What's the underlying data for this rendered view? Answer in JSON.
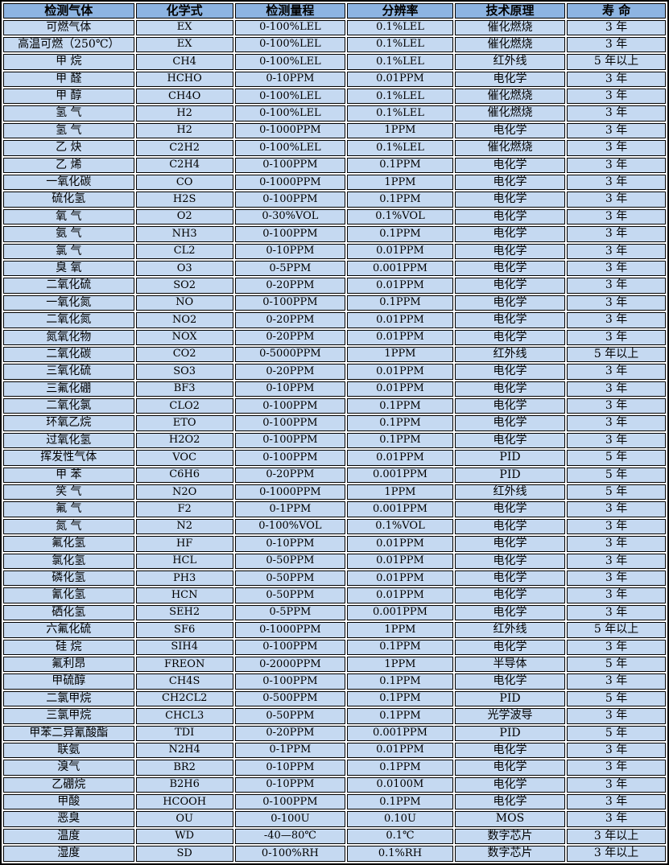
{
  "table": {
    "title": "gas-sensor-specifications",
    "colors": {
      "header_bg": "#8db4e2",
      "row_bg": "#c5d9f1",
      "border_color": "#000000",
      "grid_gap": "#ffffff",
      "text_color": "#000000"
    },
    "columns": [
      "检测气体",
      "化学式",
      "检测量程",
      "分辨率",
      "技术原理",
      "寿 命"
    ],
    "column_names": [
      "gas-name-cell",
      "formula-cell",
      "range-cell",
      "resolution-cell",
      "principle-cell",
      "lifespan-cell"
    ],
    "rows": [
      [
        "可燃气体",
        "EX",
        "0-100%LEL",
        "0.1%LEL",
        "催化燃烧",
        "3 年"
      ],
      [
        "高温可燃（250℃）",
        "EX",
        "0-100%LEL",
        "0.1%LEL",
        "催化燃烧",
        "3 年"
      ],
      [
        "甲 烷",
        "CH4",
        "0-100%LEL",
        "0.1%LEL",
        "红外线",
        "5 年以上"
      ],
      [
        "甲 醛",
        "HCHO",
        "0-10PPM",
        "0.01PPM",
        "电化学",
        "3 年"
      ],
      [
        "甲 醇",
        "CH4O",
        "0-100%LEL",
        "0.1%LEL",
        "催化燃烧",
        "3 年"
      ],
      [
        "氢 气",
        "H2",
        "0-100%LEL",
        "0.1%LEL",
        "催化燃烧",
        "3 年"
      ],
      [
        "氢 气",
        "H2",
        "0-1000PPM",
        "1PPM",
        "电化学",
        "3 年"
      ],
      [
        "乙 炔",
        "C2H2",
        "0-100%LEL",
        "0.1%LEL",
        "催化燃烧",
        "3 年"
      ],
      [
        "乙 烯",
        "C2H4",
        "0-100PPM",
        "0.1PPM",
        "电化学",
        "3 年"
      ],
      [
        "一氧化碳",
        "CO",
        "0-1000PPM",
        "1PPM",
        "电化学",
        "3 年"
      ],
      [
        "硫化氢",
        "H2S",
        "0-100PPM",
        "0.1PPM",
        "电化学",
        "3 年"
      ],
      [
        "氧 气",
        "O2",
        "0-30%VOL",
        "0.1%VOL",
        "电化学",
        "3 年"
      ],
      [
        "氨 气",
        "NH3",
        "0-100PPM",
        "0.1PPM",
        "电化学",
        "3 年"
      ],
      [
        "氯 气",
        "CL2",
        "0-10PPM",
        "0.01PPM",
        "电化学",
        "3 年"
      ],
      [
        "臭 氧",
        "O3",
        "0-5PPM",
        "0.001PPM",
        "电化学",
        "3 年"
      ],
      [
        "二氧化硫",
        "SO2",
        "0-20PPM",
        "0.01PPM",
        "电化学",
        "3 年"
      ],
      [
        "一氧化氮",
        "NO",
        "0-100PPM",
        "0.1PPM",
        "电化学",
        "3 年"
      ],
      [
        "二氧化氮",
        "NO2",
        "0-20PPM",
        "0.01PPM",
        "电化学",
        "3 年"
      ],
      [
        "氮氧化物",
        "NOX",
        "0-20PPM",
        "0.01PPM",
        "电化学",
        "3 年"
      ],
      [
        "二氧化碳",
        "CO2",
        "0-5000PPM",
        "1PPM",
        "红外线",
        "5 年以上"
      ],
      [
        "三氧化硫",
        "SO3",
        "0-20PPM",
        "0.01PPM",
        "电化学",
        "3 年"
      ],
      [
        "三氟化硼",
        "BF3",
        "0-10PPM",
        "0.01PPM",
        "电化学",
        "3 年"
      ],
      [
        "二氧化氯",
        "CLO2",
        "0-100PPM",
        "0.1PPM",
        "电化学",
        "3 年"
      ],
      [
        "环氧乙烷",
        "ETO",
        "0-100PPM",
        "0.1PPM",
        "电化学",
        "3 年"
      ],
      [
        "过氧化氢",
        "H2O2",
        "0-100PPM",
        "0.1PPM",
        "电化学",
        "3 年"
      ],
      [
        "挥发性气体",
        "VOC",
        "0-100PPM",
        "0.01PPM",
        "PID",
        "5 年"
      ],
      [
        "甲 苯",
        "C6H6",
        "0-20PPM",
        "0.001PPM",
        "PID",
        "5 年"
      ],
      [
        "笑 气",
        "N2O",
        "0-1000PPM",
        "1PPM",
        "红外线",
        "5 年"
      ],
      [
        "氟 气",
        "F2",
        "0-1PPM",
        "0.001PPM",
        "电化学",
        "3 年"
      ],
      [
        "氮 气",
        "N2",
        "0-100%VOL",
        "0.1%VOL",
        "电化学",
        "3 年"
      ],
      [
        "氟化氢",
        "HF",
        "0-10PPM",
        "0.01PPM",
        "电化学",
        "3 年"
      ],
      [
        "氯化氢",
        "HCL",
        "0-50PPM",
        "0.01PPM",
        "电化学",
        "3 年"
      ],
      [
        "磷化氢",
        "PH3",
        "0-50PPM",
        "0.01PPM",
        "电化学",
        "3 年"
      ],
      [
        "氰化氢",
        "HCN",
        "0-50PPM",
        "0.01PPM",
        "电化学",
        "3 年"
      ],
      [
        "硒化氢",
        "SEH2",
        "0-5PPM",
        "0.001PPM",
        "电化学",
        "3 年"
      ],
      [
        "六氟化硫",
        "SF6",
        "0-1000PPM",
        "1PPM",
        "红外线",
        "5 年以上"
      ],
      [
        "硅 烷",
        "SIH4",
        "0-100PPM",
        "0.1PPM",
        "电化学",
        "3 年"
      ],
      [
        "氟利昂",
        "FREON",
        "0-2000PPM",
        "1PPM",
        "半导体",
        "5 年"
      ],
      [
        "甲硫醇",
        "CH4S",
        "0-100PPM",
        "0.1PPM",
        "电化学",
        "3 年"
      ],
      [
        "二氯甲烷",
        "CH2CL2",
        "0-500PPM",
        "0.1PPM",
        "PID",
        "5 年"
      ],
      [
        "三氯甲烷",
        "CHCL3",
        "0-50PPM",
        "0.1PPM",
        "光学波导",
        "3 年"
      ],
      [
        "甲苯二异氰酸酯",
        "TDI",
        "0-20PPM",
        "0.001PPM",
        "PID",
        "5 年"
      ],
      [
        "联氨",
        "N2H4",
        "0-1PPM",
        "0.01PPM",
        "电化学",
        "3 年"
      ],
      [
        "溴气",
        "BR2",
        "0-10PPM",
        "0.1PPM",
        "电化学",
        "3 年"
      ],
      [
        "乙硼烷",
        "B2H6",
        "0-10PPM",
        "0.0100M",
        "电化学",
        "3 年"
      ],
      [
        "甲酸",
        "HCOOH",
        "0-100PPM",
        "0.1PPM",
        "电化学",
        "3 年"
      ],
      [
        "恶臭",
        "OU",
        "0-100U",
        "0.10U",
        "MOS",
        "3 年"
      ],
      [
        "温度",
        "WD",
        "-40—80℃",
        "0.1℃",
        "数字芯片",
        "3 年以上"
      ],
      [
        "湿度",
        "SD",
        "0-100%RH",
        "0.1%RH",
        "数字芯片",
        "3 年以上"
      ]
    ]
  }
}
